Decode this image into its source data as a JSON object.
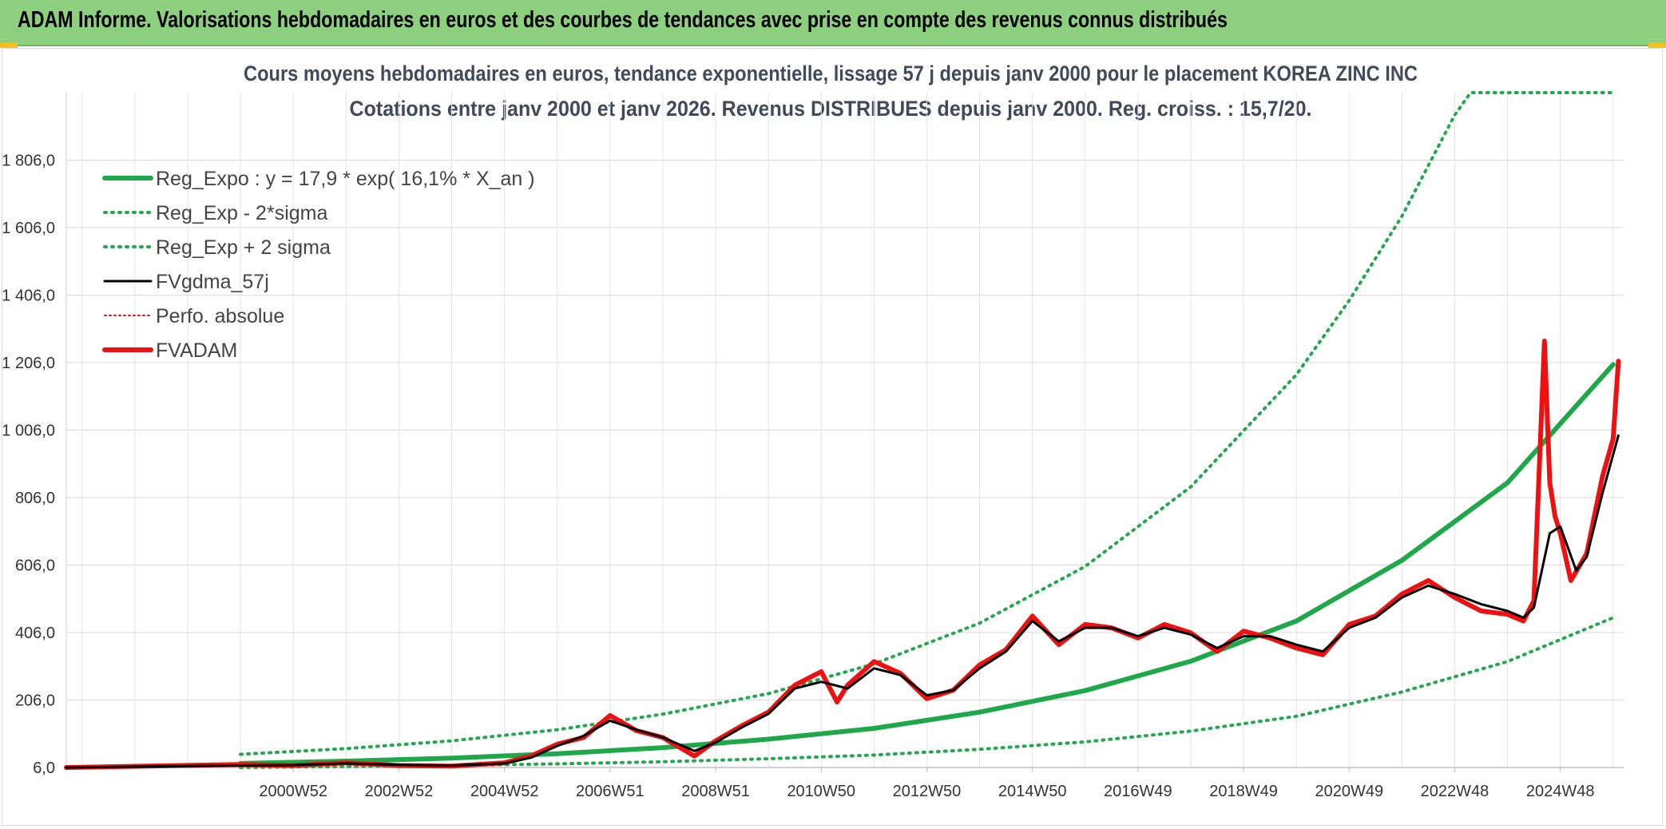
{
  "banner": {
    "title": "ADAM Informe. Valorisations hebdomadaires en euros et des courbes de tendances avec prise en compte des revenus connus distribués"
  },
  "colors": {
    "banner_bg": "#8ccf7e",
    "reg_expo": "#1ea84a",
    "sigma": "#22a84e",
    "fvgdma": "#000000",
    "perfo": "#e31010",
    "fvadam": "#ee1111"
  },
  "chart_data": {
    "type": "line",
    "title_line1": "Cours moyens hebdomadaires en euros, tendance exponentielle, lissage 57 j depuis janv 2000 pour le placement KOREA ZINC INC",
    "title_line2": "Cotations entre janv 2000 et janv 2026. Revenus DISTRIBUES depuis janv 2000. Reg. croiss. : 15,7/20.",
    "x_range": [
      1996.7,
      2026.2
    ],
    "ylim": [
      6,
      2006
    ],
    "y_ticks": [
      "6,0",
      "206,0",
      "406,0",
      "606,0",
      "806,0",
      "1 006,0",
      "1 206,0",
      "1 406,0",
      "1 606,0",
      "1 806,0"
    ],
    "y_tick_values": [
      6,
      206,
      406,
      606,
      806,
      1006,
      1206,
      1406,
      1606,
      1806
    ],
    "x_ticks": [
      "2000W52",
      "2002W52",
      "2004W52",
      "2006W51",
      "2008W51",
      "2010W50",
      "2012W50",
      "2014W50",
      "2016W49",
      "2018W49",
      "2020W49",
      "2022W48",
      "2024W48"
    ],
    "x_tick_values": [
      2001.0,
      2003.0,
      2005.0,
      2007.0,
      2009.0,
      2011.0,
      2013.0,
      2015.0,
      2017.0,
      2019.0,
      2021.0,
      2023.0,
      2025.0
    ],
    "grid": true,
    "legend": {
      "placement": "top-left",
      "entries": [
        {
          "label": "Reg_Expo : y = 17,9 * exp( 16,1% *  X_an )",
          "style": "solid-thick",
          "color": "#1ea84a"
        },
        {
          "label": "Reg_Exp - 2*sigma",
          "style": "dotted",
          "color": "#22a84e"
        },
        {
          "label": "Reg_Exp + 2 sigma",
          "style": "dotted",
          "color": "#22a84e"
        },
        {
          "label": "FVgdma_57j",
          "style": "solid",
          "color": "#000000"
        },
        {
          "label": "Perfo. absolue",
          "style": "dotted-thin",
          "color": "#e31010"
        },
        {
          "label": "FVADAM",
          "style": "solid-thick",
          "color": "#ee1111"
        }
      ]
    },
    "series": [
      {
        "name": "Reg_Expo : y = 17,9 * exp( 16,1% *  X_an )",
        "x": [
          2000.0,
          2002.0,
          2004.0,
          2006.0,
          2008.0,
          2010.0,
          2012.0,
          2014.0,
          2016.0,
          2018.0,
          2020.0,
          2022.0,
          2024.0,
          2026.0
        ],
        "y": [
          18,
          25,
          34,
          47,
          65,
          90,
          122,
          170,
          234,
          321,
          440,
          620,
          850,
          1200
        ]
      },
      {
        "name": "Reg_Exp - 2*sigma",
        "x": [
          2000.0,
          2002.0,
          2004.0,
          2006.0,
          2008.0,
          2010.0,
          2012.0,
          2014.0,
          2016.0,
          2018.0,
          2020.0,
          2022.0,
          2024.0,
          2026.0
        ],
        "y": [
          6,
          9,
          12,
          17,
          23,
          32,
          43,
          60,
          82,
          114,
          158,
          230,
          320,
          450
        ]
      },
      {
        "name": "Reg_Exp + 2 sigma",
        "x": [
          2000.0,
          2002.0,
          2004.0,
          2006.0,
          2008.0,
          2010.0,
          2012.0,
          2014.0,
          2016.0,
          2018.0,
          2020.0,
          2021.0,
          2022.0,
          2023.0,
          2023.3,
          2026.0
        ],
        "y": [
          45,
          62,
          85,
          118,
          164,
          225,
          313,
          434,
          602,
          838,
          1170,
          1390,
          1640,
          1940,
          2006,
          2006
        ]
      },
      {
        "name": "FVgdma_57j",
        "x": [
          1996.7,
          2000.0,
          2001.0,
          2002.0,
          2003.0,
          2004.0,
          2005.0,
          2005.5,
          2006.0,
          2006.5,
          2007.0,
          2007.5,
          2008.0,
          2008.6,
          2009.0,
          2009.5,
          2010.0,
          2010.5,
          2011.0,
          2011.5,
          2012.0,
          2012.5,
          2013.0,
          2013.5,
          2014.0,
          2014.5,
          2015.0,
          2015.5,
          2016.0,
          2016.5,
          2017.0,
          2017.5,
          2018.0,
          2018.5,
          2019.0,
          2019.5,
          2020.0,
          2020.5,
          2021.0,
          2021.5,
          2022.0,
          2022.5,
          2023.0,
          2023.5,
          2024.0,
          2024.3,
          2024.5,
          2024.8,
          2025.0,
          2025.3,
          2025.5,
          2025.8,
          2026.1
        ],
        "y": [
          6,
          12,
          13,
          18,
          14,
          12,
          18,
          35,
          70,
          100,
          145,
          118,
          95,
          55,
          80,
          125,
          165,
          240,
          260,
          240,
          300,
          280,
          220,
          235,
          300,
          350,
          440,
          380,
          420,
          420,
          395,
          420,
          400,
          360,
          395,
          395,
          370,
          350,
          420,
          450,
          510,
          545,
          520,
          490,
          470,
          450,
          480,
          700,
          720,
          590,
          630,
          820,
          990
        ]
      },
      {
        "name": "FVADAM",
        "x": [
          1996.7,
          2000.0,
          2001.0,
          2002.0,
          2003.0,
          2004.0,
          2005.0,
          2005.5,
          2006.0,
          2006.5,
          2007.0,
          2007.5,
          2008.0,
          2008.6,
          2009.0,
          2009.5,
          2010.0,
          2010.5,
          2011.0,
          2011.3,
          2011.5,
          2012.0,
          2012.5,
          2013.0,
          2013.5,
          2014.0,
          2014.5,
          2015.0,
          2015.5,
          2016.0,
          2016.5,
          2017.0,
          2017.5,
          2018.0,
          2018.5,
          2019.0,
          2019.5,
          2020.0,
          2020.5,
          2021.0,
          2021.5,
          2022.0,
          2022.5,
          2023.0,
          2023.5,
          2024.0,
          2024.3,
          2024.5,
          2024.7,
          2024.8,
          2024.9,
          2025.0,
          2025.2,
          2025.5,
          2025.8,
          2026.0,
          2026.1
        ],
        "y": [
          6,
          15,
          12,
          20,
          12,
          10,
          20,
          40,
          75,
          95,
          160,
          115,
          95,
          40,
          85,
          130,
          170,
          250,
          290,
          200,
          250,
          320,
          285,
          210,
          235,
          310,
          355,
          455,
          370,
          430,
          420,
          390,
          430,
          405,
          350,
          410,
          390,
          360,
          340,
          430,
          455,
          520,
          560,
          510,
          470,
          460,
          440,
          500,
          1270,
          850,
          750,
          700,
          560,
          640,
          870,
          980,
          1210
        ]
      }
    ]
  }
}
